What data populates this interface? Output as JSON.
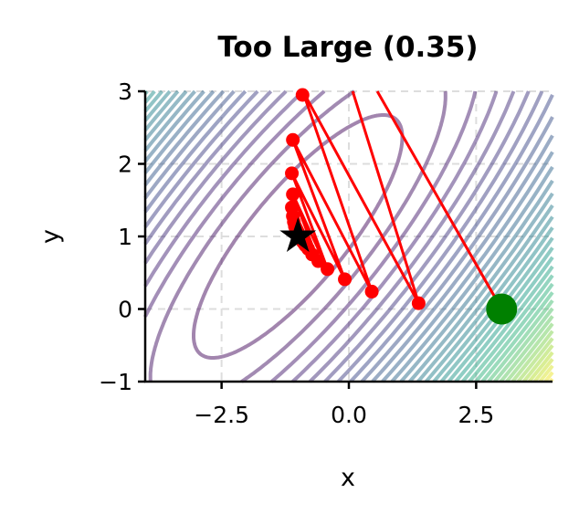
{
  "chart_data": {
    "type": "line",
    "title": "Too Large (0.35)",
    "xlabel": "x",
    "ylabel": "y",
    "xlim": [
      -4,
      4
    ],
    "ylim": [
      -1,
      3
    ],
    "xticks": [
      -2.5,
      0.0,
      2.5
    ],
    "xtick_labels": [
      "−2.5",
      "0.0",
      "2.5"
    ],
    "yticks": [
      -1,
      0,
      1,
      2,
      3
    ],
    "ytick_labels": [
      "−1",
      "0",
      "1",
      "2",
      "3"
    ],
    "grid": true,
    "contours": {
      "function": "quadratic",
      "center": [
        -1,
        1
      ],
      "coefficients": {
        "uu": 1,
        "vv": 1.5,
        "uv": -2
      },
      "level_step": 1.4,
      "level_count": 36,
      "colormap": "viridis",
      "alpha": 0.5
    },
    "path": {
      "color": "#ff0000",
      "points": [
        [
          3,
          0
        ],
        [
          -0.5,
          4.3
        ],
        [
          1.37,
          0.08
        ],
        [
          -0.91,
          3.01
        ],
        [
          0.45,
          0.24
        ],
        [
          -1.1,
          2.33
        ],
        [
          -0.08,
          0.41
        ],
        [
          -1.12,
          1.87
        ],
        [
          -0.42,
          0.55
        ],
        [
          -1.1,
          1.58
        ],
        [
          -0.6,
          0.66
        ],
        [
          -1.12,
          1.4
        ],
        [
          -0.72,
          0.75
        ],
        [
          -1.1,
          1.28
        ],
        [
          -0.8,
          0.83
        ],
        [
          -1.08,
          1.2
        ],
        [
          -0.86,
          0.88
        ],
        [
          -1.06,
          1.14
        ],
        [
          -0.9,
          0.92
        ],
        [
          -1.04,
          1.1
        ]
      ]
    },
    "start": {
      "point": [
        3,
        0
      ],
      "color": "#008000"
    },
    "optimum": {
      "point": [
        -1,
        1
      ],
      "color": "#000000",
      "marker": "star"
    }
  }
}
